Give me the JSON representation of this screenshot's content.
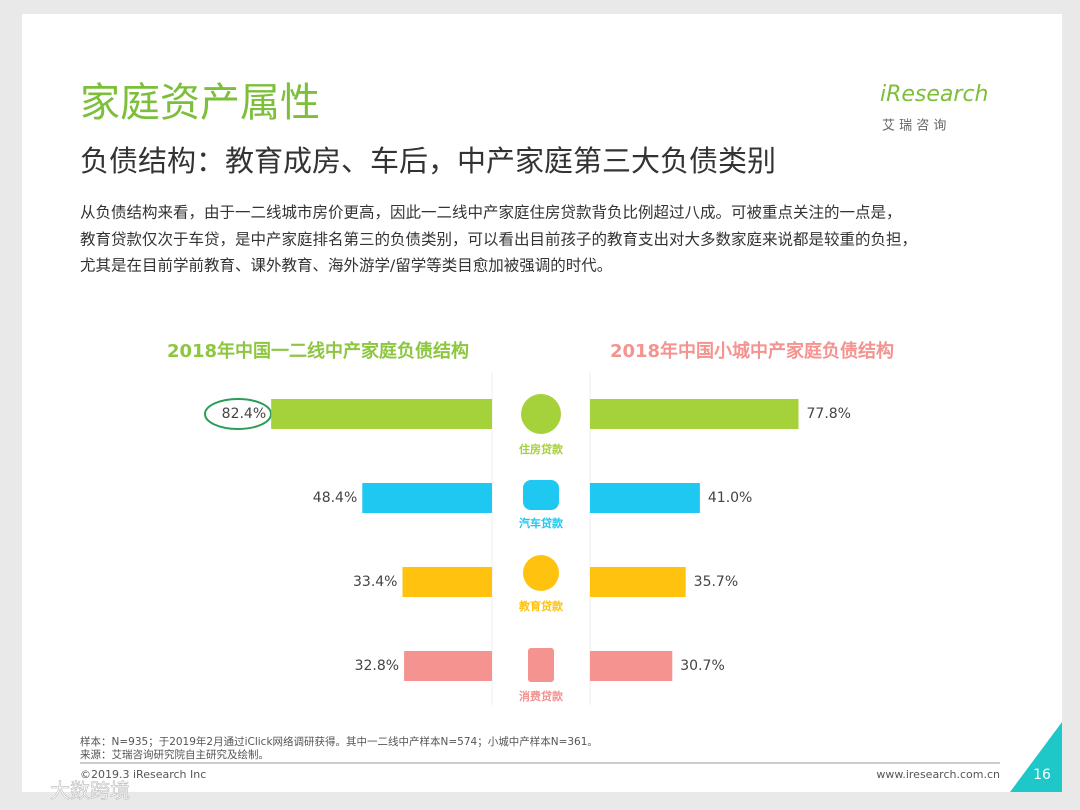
{
  "header": {
    "title": "家庭资产属性",
    "subtitle": "负债结构：教育成房、车后，中产家庭第三大负债类别",
    "logo": "iResearch",
    "logo_cn": "艾 瑞 咨 询"
  },
  "body": [
    "从负债结构来看，由于一二线城市房价更高，因此一二线中产家庭住房贷款背负比例超过八成。可被重点关注的一点是，",
    "教育贷款仅次于车贷，是中产家庭排名第三的负债类别，可以看出目前孩子的教育支出对大多数家庭来说都是较重的负担，",
    "尤其是在目前学前教育、课外教育、海外游学/留学等类目愈加被强调的时代。"
  ],
  "chart_data": [
    {
      "type": "bar",
      "orientation": "left",
      "title": "2018年中国一二线中产家庭负债结构",
      "categories": [
        "住房贷款",
        "汽车贷款",
        "教育贷款",
        "消费贷款"
      ],
      "values": [
        82.4,
        48.4,
        33.4,
        32.8
      ],
      "value_labels": [
        "82.4%",
        "48.4%",
        "33.4%",
        "32.8%"
      ],
      "colors": [
        "#a5d13a",
        "#1ec8f0",
        "#ffc20e",
        "#f4938f"
      ],
      "title_color": "#8dc63f"
    },
    {
      "type": "bar",
      "orientation": "right",
      "title": "2018年中国小城中产家庭负债结构",
      "values": [
        77.8,
        41.0,
        35.7,
        30.7
      ],
      "value_labels": [
        "77.8%",
        "41.0%",
        "35.7%",
        "30.7%"
      ],
      "colors": [
        "#a5d13a",
        "#1ec8f0",
        "#ffc20e",
        "#f4938f"
      ],
      "title_color": "#f4938f"
    }
  ],
  "footer": {
    "notes": [
      "样本：N=935；于2019年2月通过iClick网络调研获得。其中一二线中产样本N=574；小城中产样本N=361。",
      "来源：艾瑞咨询研究院自主研究及绘制。"
    ],
    "copyright": "©2019.3 iResearch Inc",
    "url": "www.iresearch.com.cn",
    "page": "16",
    "watermark": "大数跨境"
  }
}
